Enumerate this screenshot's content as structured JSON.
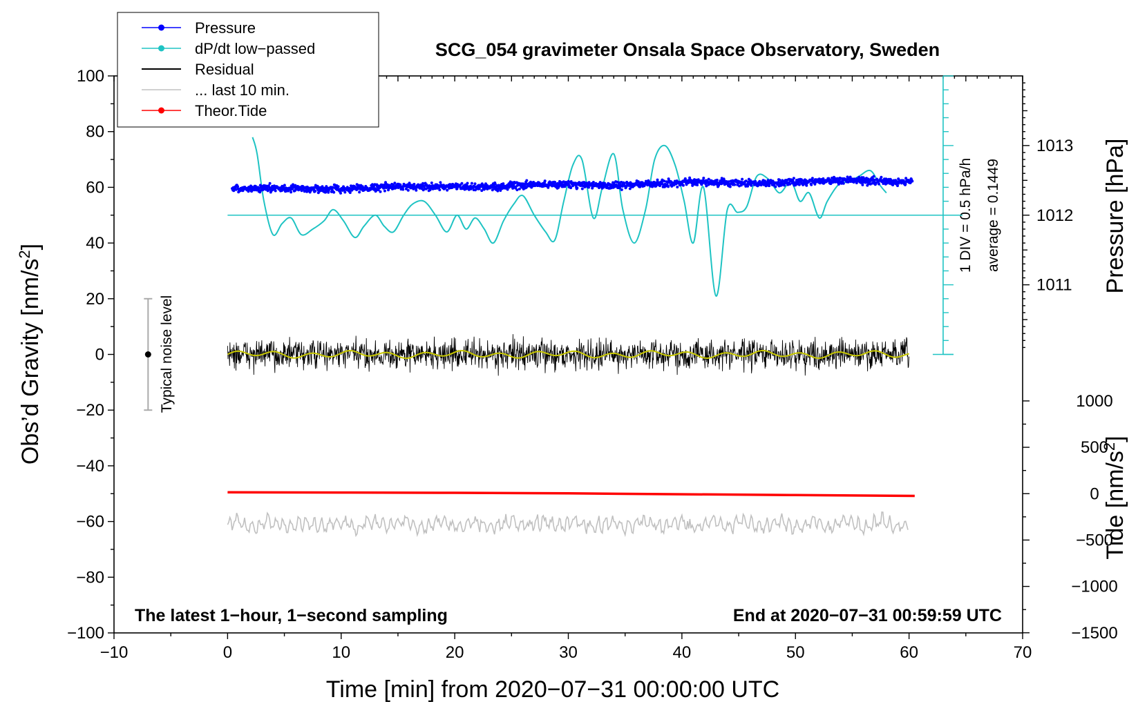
{
  "chart_data": {
    "type": "line",
    "title": "SCG_054 gravimeter Onsala Space Observatory, Sweden",
    "xlabel": "Time [min] from 2020−07−31 00:00:00 UTC",
    "ylabel": "Obs’d Gravity [nm/s",
    "ylabel_sup": "2",
    "ylabel_end": "]",
    "y2label": "Pressure [hPa]",
    "y3label": "Tide [nm/s",
    "y3label_sup": "2",
    "y3label_end": "]",
    "xlim": [
      -10,
      70
    ],
    "ylim": [
      -100,
      100
    ],
    "x_ticks": [
      -10,
      0,
      10,
      20,
      30,
      40,
      50,
      60,
      70
    ],
    "x_tick_labels": [
      "−10",
      "0",
      "10",
      "20",
      "30",
      "40",
      "50",
      "60",
      "70"
    ],
    "y_ticks": [
      -100,
      -80,
      -60,
      -40,
      -20,
      0,
      20,
      40,
      60,
      80,
      100
    ],
    "y_tick_labels": [
      "−100",
      "−80",
      "−60",
      "−40",
      "−20",
      "0",
      "20",
      "40",
      "60",
      "80",
      "100"
    ],
    "pressure_axis": {
      "ticks": [
        1011,
        1012,
        1013
      ],
      "tick_labels": [
        "1011",
        "1012",
        "1013"
      ],
      "gravity_at_1012": 50,
      "gravity_per_hpa": 25
    },
    "tide_axis": {
      "ticks": [
        -1500,
        -1000,
        -500,
        0,
        500,
        1000
      ],
      "tick_labels": [
        "−1500",
        "−1000",
        "−500",
        "0",
        "500",
        "1000"
      ],
      "gravity_at_0": -50,
      "gravity_per_unit": 0.0333
    },
    "dpdt_scale": {
      "label_div": "1 DIV = 0.5 hPa/h",
      "label_avg": "average = 0.1449",
      "x": 63,
      "baseline_gravity": 50,
      "range": [
        0,
        100
      ],
      "div_step": 5
    },
    "noise_bar": {
      "label": "Typical noise level",
      "x": -7,
      "center": 0,
      "range": [
        -20,
        20
      ]
    },
    "footer_left": "The latest 1−hour, 1−second sampling",
    "footer_right": "End at 2020−07−31 00:59:59 UTC",
    "legend": [
      {
        "label": "Pressure",
        "color": "#0000ff",
        "marker": true
      },
      {
        "label": "dP/dt low−passed",
        "color": "#1ec3c3",
        "marker": true
      },
      {
        "label": "Residual",
        "color": "#000000",
        "marker": false
      },
      {
        "label": "... last 10 min.",
        "color": "#c0c0c0",
        "marker": false
      },
      {
        "label": "Theor.Tide",
        "color": "#ff0000",
        "marker": true
      }
    ],
    "series": [
      {
        "name": "Pressure",
        "color": "#0000ff",
        "center_start": 59.2,
        "center_end": 62.5,
        "x_range": [
          0.4,
          60.3
        ],
        "spread": 1.6
      },
      {
        "name": "dP/dt low−passed",
        "color": "#1ec3c3",
        "x": [
          2.2,
          2.6,
          3.2,
          4.0,
          4.8,
          5.6,
          6.5,
          7.5,
          8.5,
          9.3,
          10.2,
          11.2,
          12.0,
          13.0,
          13.8,
          14.6,
          15.5,
          16.3,
          17.3,
          18.3,
          19.3,
          20.2,
          21.0,
          21.8,
          22.6,
          23.4,
          24.3,
          25.2,
          26.0,
          27.0,
          28.0,
          28.8,
          29.6,
          30.4,
          31.2,
          32.2,
          33.0,
          34.0,
          34.8,
          35.8,
          36.8,
          37.6,
          38.5,
          39.4,
          40.2,
          41.0,
          41.9,
          43.0,
          44.0,
          44.9,
          45.7,
          46.6,
          47.6,
          48.6,
          49.6,
          50.4,
          51.2,
          52.1,
          52.8,
          53.8,
          54.7,
          55.6,
          56.6,
          57.4,
          58.0
        ],
        "y": [
          78,
          72,
          55,
          43,
          47,
          49,
          43,
          45,
          48,
          52,
          48,
          42,
          46,
          50,
          46,
          44,
          50,
          54,
          55,
          50,
          44,
          50,
          45,
          49,
          45,
          40,
          48,
          54,
          57,
          50,
          44,
          41,
          55,
          68,
          70,
          49,
          60,
          72,
          52,
          40,
          52,
          70,
          75,
          68,
          55,
          40,
          60,
          21,
          52,
          51,
          53,
          64,
          63,
          58,
          62,
          55,
          58,
          49,
          55,
          61,
          62,
          64,
          66,
          61,
          58
        ]
      },
      {
        "name": "Residual",
        "color": "#000000",
        "center": 0,
        "spread": 3,
        "x_range": [
          0,
          60
        ]
      },
      {
        "name": "Residual (smoothed)",
        "color": "#c8c800",
        "center": 0
      },
      {
        "name": "... last 10 min.",
        "color": "#c0c0c0",
        "center": -61,
        "spread": 3,
        "x_range": [
          0,
          60
        ]
      },
      {
        "name": "Theor.Tide",
        "color": "#ff0000",
        "x": [
          0,
          10,
          20,
          30,
          40,
          50,
          60.5
        ],
        "y": [
          -49.5,
          -49.6,
          -49.7,
          -49.9,
          -50.2,
          -50.5,
          -50.8
        ]
      }
    ]
  }
}
